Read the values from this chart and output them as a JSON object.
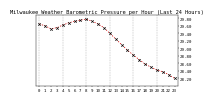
{
  "title": "Milwaukee Weather Barometric Pressure per Hour (Last 24 Hours)",
  "hours": [
    0,
    1,
    2,
    3,
    4,
    5,
    6,
    7,
    8,
    9,
    10,
    11,
    12,
    13,
    14,
    15,
    16,
    17,
    18,
    19,
    20,
    21,
    22,
    23
  ],
  "pressure": [
    29.65,
    29.6,
    29.52,
    29.55,
    29.62,
    29.68,
    29.72,
    29.75,
    29.78,
    29.72,
    29.65,
    29.55,
    29.4,
    29.25,
    29.1,
    28.95,
    28.82,
    28.7,
    28.58,
    28.5,
    28.42,
    28.38,
    28.3,
    28.2
  ],
  "line_color": "#cc0000",
  "marker_color": "#000000",
  "bg_color": "#ffffff",
  "grid_color": "#888888",
  "title_fontsize": 3.8,
  "tick_fontsize": 3.0,
  "ylim_min": 28.0,
  "ylim_max": 29.9,
  "ytick_values": [
    28.2,
    28.4,
    28.6,
    28.8,
    29.0,
    29.2,
    29.4,
    29.6,
    29.8
  ],
  "grid_x_positions": [
    0,
    4,
    8,
    12,
    16,
    20,
    24
  ],
  "xlim_min": -0.5,
  "xlim_max": 23.5
}
